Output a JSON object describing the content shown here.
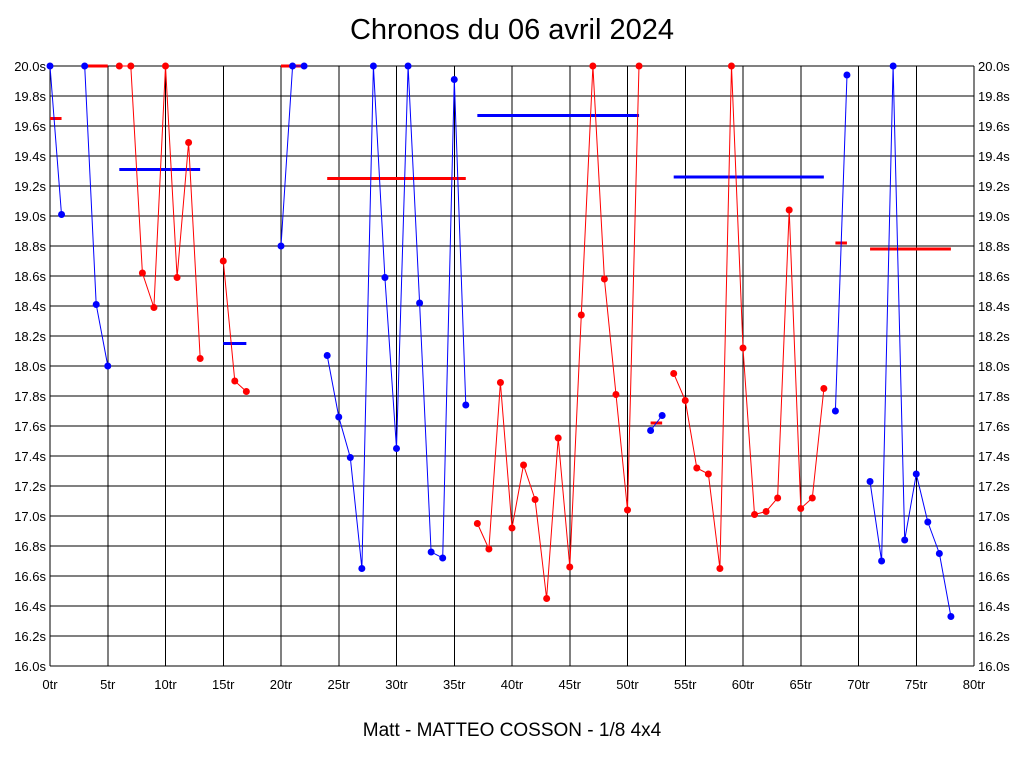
{
  "chart_data": {
    "type": "line",
    "title": "Chronos du 06 avril 2024",
    "xlabel": "Matt - MATTEO COSSON - 1/8 4x4",
    "ylabel": "",
    "xlim": [
      0,
      80
    ],
    "ylim": [
      16.0,
      20.0
    ],
    "x_ticks": [
      "0tr",
      "5tr",
      "10tr",
      "15tr",
      "20tr",
      "25tr",
      "30tr",
      "35tr",
      "40tr",
      "45tr",
      "50tr",
      "55tr",
      "60tr",
      "65tr",
      "70tr",
      "75tr",
      "80tr"
    ],
    "y_ticks": [
      "16.0s",
      "16.2s",
      "16.4s",
      "16.6s",
      "16.8s",
      "17.0s",
      "17.2s",
      "17.4s",
      "17.6s",
      "17.8s",
      "18.0s",
      "18.2s",
      "18.4s",
      "18.6s",
      "18.8s",
      "19.0s",
      "19.2s",
      "19.4s",
      "19.6s",
      "19.8s",
      "20.0s"
    ],
    "grid": true,
    "colors": {
      "blue": "#0000ff",
      "red": "#ff0000"
    },
    "series": [
      {
        "color": "#0000ff",
        "points": [
          [
            0,
            20.0
          ],
          [
            1,
            19.01
          ]
        ]
      },
      {
        "color": "#0000ff",
        "points": [
          [
            3,
            20.0
          ],
          [
            4,
            18.41
          ],
          [
            5,
            18.0
          ]
        ]
      },
      {
        "color": "#ff0000",
        "points": [
          [
            6,
            20.0
          ],
          [
            7,
            20.0
          ],
          [
            8,
            18.62
          ],
          [
            9,
            18.39
          ],
          [
            10,
            20.0
          ],
          [
            11,
            18.59
          ],
          [
            12,
            19.49
          ],
          [
            13,
            18.05
          ]
        ]
      },
      {
        "color": "#ff0000",
        "points": [
          [
            15,
            18.7
          ],
          [
            16,
            17.9
          ],
          [
            17,
            17.83
          ]
        ]
      },
      {
        "color": "#0000ff",
        "points": [
          [
            20,
            18.8
          ],
          [
            21,
            20.0
          ],
          [
            22,
            20.0
          ]
        ]
      },
      {
        "color": "#0000ff",
        "points": [
          [
            24,
            18.07
          ],
          [
            25,
            17.66
          ],
          [
            26,
            17.39
          ],
          [
            27,
            16.65
          ],
          [
            28,
            20.0
          ],
          [
            29,
            18.59
          ],
          [
            30,
            17.45
          ],
          [
            31,
            20.0
          ],
          [
            32,
            18.42
          ],
          [
            33,
            16.76
          ],
          [
            34,
            16.72
          ],
          [
            35,
            19.91
          ],
          [
            36,
            17.74
          ]
        ]
      },
      {
        "color": "#ff0000",
        "points": [
          [
            37,
            16.95
          ],
          [
            38,
            16.78
          ],
          [
            39,
            17.89
          ],
          [
            40,
            16.92
          ],
          [
            41,
            17.34
          ],
          [
            42,
            17.11
          ],
          [
            43,
            16.45
          ],
          [
            44,
            17.52
          ],
          [
            45,
            16.66
          ],
          [
            46,
            18.34
          ],
          [
            47,
            20.0
          ],
          [
            48,
            18.58
          ],
          [
            49,
            17.81
          ],
          [
            50,
            17.04
          ],
          [
            51,
            20.0
          ]
        ]
      },
      {
        "color": "#0000ff",
        "points": [
          [
            52,
            17.57
          ],
          [
            53,
            17.67
          ]
        ]
      },
      {
        "color": "#ff0000",
        "points": [
          [
            54,
            17.95
          ],
          [
            55,
            17.77
          ],
          [
            56,
            17.32
          ],
          [
            57,
            17.28
          ],
          [
            58,
            16.65
          ],
          [
            59,
            20.0
          ],
          [
            60,
            18.12
          ],
          [
            61,
            17.01
          ],
          [
            62,
            17.03
          ],
          [
            63,
            17.12
          ],
          [
            64,
            19.04
          ],
          [
            65,
            17.05
          ],
          [
            66,
            17.12
          ],
          [
            67,
            17.85
          ]
        ]
      },
      {
        "color": "#0000ff",
        "points": [
          [
            68,
            17.7
          ],
          [
            69,
            19.94
          ]
        ]
      },
      {
        "color": "#0000ff",
        "points": [
          [
            71,
            17.23
          ],
          [
            72,
            16.7
          ],
          [
            73,
            20.0
          ],
          [
            74,
            16.84
          ],
          [
            75,
            17.28
          ],
          [
            76,
            16.96
          ],
          [
            77,
            16.75
          ],
          [
            78,
            16.33
          ]
        ]
      }
    ],
    "averages": [
      {
        "color": "#ff0000",
        "x": [
          0,
          1
        ],
        "y": 19.65
      },
      {
        "color": "#ff0000",
        "x": [
          3,
          5
        ],
        "y": 20.0
      },
      {
        "color": "#0000ff",
        "x": [
          6,
          13
        ],
        "y": 19.31
      },
      {
        "color": "#0000ff",
        "x": [
          15,
          17
        ],
        "y": 18.15
      },
      {
        "color": "#ff0000",
        "x": [
          20,
          22
        ],
        "y": 20.0
      },
      {
        "color": "#ff0000",
        "x": [
          24,
          36
        ],
        "y": 19.25
      },
      {
        "color": "#0000ff",
        "x": [
          37,
          51
        ],
        "y": 19.67
      },
      {
        "color": "#ff0000",
        "x": [
          52,
          53
        ],
        "y": 17.62
      },
      {
        "color": "#0000ff",
        "x": [
          54,
          67
        ],
        "y": 19.26
      },
      {
        "color": "#ff0000",
        "x": [
          68,
          69
        ],
        "y": 18.82
      },
      {
        "color": "#ff0000",
        "x": [
          71,
          78
        ],
        "y": 18.78
      }
    ]
  }
}
